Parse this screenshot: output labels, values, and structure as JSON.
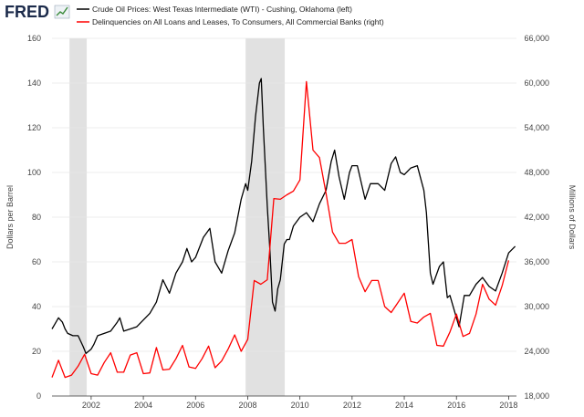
{
  "header": {
    "logo_text": "FRED",
    "logo_icon": "chart-trend-icon"
  },
  "chart_data": {
    "type": "line",
    "title": "",
    "legend_position": "top-left",
    "xlabel": "",
    "xlim": [
      2000.5,
      2018.3
    ],
    "x_ticks": [
      2002,
      2004,
      2006,
      2008,
      2010,
      2012,
      2014,
      2016,
      2018
    ],
    "x_tick_labels": [
      "2002",
      "2004",
      "2006",
      "2008",
      "2010",
      "2012",
      "2014",
      "2016",
      "2018"
    ],
    "left_axis": {
      "label": "Dollars per Barrel",
      "ylim": [
        0,
        160
      ],
      "ticks": [
        0,
        20,
        40,
        60,
        80,
        100,
        120,
        140,
        160
      ],
      "tick_labels": [
        "0",
        "20",
        "40",
        "60",
        "80",
        "100",
        "120",
        "140",
        "160"
      ]
    },
    "right_axis": {
      "label": "Millions of Dollars",
      "ylim": [
        18000,
        66000
      ],
      "ticks": [
        18000,
        24000,
        30000,
        36000,
        42000,
        48000,
        54000,
        60000,
        66000
      ],
      "tick_labels": [
        "18,000",
        "24,000",
        "30,000",
        "36,000",
        "42,000",
        "48,000",
        "54,000",
        "60,000",
        "66,000"
      ]
    },
    "recessions": [
      {
        "start": 2001.17,
        "end": 2001.83
      },
      {
        "start": 2007.92,
        "end": 2009.42
      }
    ],
    "series": [
      {
        "name": "Crude Oil Prices: West Texas Intermediate (WTI) - Cushing, Oklahoma (left)",
        "axis": "left",
        "color": "#000000",
        "x": [
          2000.5,
          2000.6,
          2000.75,
          2000.9,
          2001.0,
          2001.1,
          2001.3,
          2001.5,
          2001.7,
          2001.8,
          2001.9,
          2002.0,
          2002.1,
          2002.25,
          2002.5,
          2002.75,
          2003.0,
          2003.1,
          2003.25,
          2003.5,
          2003.75,
          2004.0,
          2004.25,
          2004.5,
          2004.75,
          2005.0,
          2005.25,
          2005.5,
          2005.67,
          2005.85,
          2006.0,
          2006.3,
          2006.55,
          2006.75,
          2007.0,
          2007.25,
          2007.5,
          2007.75,
          2007.92,
          2008.0,
          2008.15,
          2008.3,
          2008.45,
          2008.52,
          2008.6,
          2008.75,
          2008.85,
          2008.95,
          2009.05,
          2009.15,
          2009.25,
          2009.4,
          2009.5,
          2009.6,
          2009.75,
          2010.0,
          2010.25,
          2010.5,
          2010.75,
          2011.0,
          2011.2,
          2011.33,
          2011.5,
          2011.7,
          2011.9,
          2012.0,
          2012.2,
          2012.5,
          2012.7,
          2013.0,
          2013.25,
          2013.5,
          2013.67,
          2013.85,
          2014.0,
          2014.25,
          2014.5,
          2014.75,
          2014.85,
          2015.0,
          2015.1,
          2015.35,
          2015.5,
          2015.65,
          2015.75,
          2016.0,
          2016.1,
          2016.3,
          2016.5,
          2016.75,
          2017.0,
          2017.25,
          2017.5,
          2017.75,
          2018.0,
          2018.25
        ],
        "values": [
          30,
          32,
          35,
          33,
          30,
          28,
          27,
          27,
          22,
          19,
          20,
          21,
          23,
          27,
          28,
          29,
          33,
          35,
          29,
          30,
          31,
          34,
          37,
          42,
          52,
          46,
          55,
          60,
          66,
          60,
          62,
          71,
          75,
          60,
          55,
          65,
          73,
          88,
          95,
          92,
          105,
          125,
          140,
          142,
          120,
          85,
          65,
          42,
          38,
          48,
          52,
          68,
          70,
          70,
          76,
          80,
          82,
          78,
          86,
          92,
          105,
          110,
          98,
          88,
          100,
          103,
          103,
          88,
          95,
          95,
          92,
          104,
          107,
          100,
          99,
          102,
          103,
          92,
          82,
          55,
          50,
          58,
          60,
          44,
          45,
          35,
          31,
          45,
          45,
          50,
          53,
          49,
          47,
          55,
          64,
          67
        ]
      },
      {
        "name": "Delinquencies on All Loans and Leases, To Consumers, All Commercial Banks (right)",
        "axis": "right",
        "color": "#ff0000",
        "x": [
          2000.5,
          2000.75,
          2001.0,
          2001.25,
          2001.5,
          2001.75,
          2002.0,
          2002.25,
          2002.5,
          2002.75,
          2003.0,
          2003.25,
          2003.5,
          2003.75,
          2004.0,
          2004.25,
          2004.5,
          2004.75,
          2005.0,
          2005.25,
          2005.5,
          2005.75,
          2006.0,
          2006.25,
          2006.5,
          2006.75,
          2007.0,
          2007.25,
          2007.5,
          2007.75,
          2008.0,
          2008.25,
          2008.5,
          2008.75,
          2009.0,
          2009.25,
          2009.5,
          2009.75,
          2010.0,
          2010.25,
          2010.5,
          2010.75,
          2011.0,
          2011.25,
          2011.5,
          2011.75,
          2012.0,
          2012.25,
          2012.5,
          2012.75,
          2013.0,
          2013.25,
          2013.5,
          2013.75,
          2014.0,
          2014.25,
          2014.5,
          2014.75,
          2015.0,
          2015.25,
          2015.5,
          2015.75,
          2016.0,
          2016.25,
          2016.5,
          2016.75,
          2017.0,
          2017.25,
          2017.5,
          2017.75,
          2018.0
        ],
        "values": [
          20500,
          22800,
          20500,
          20800,
          22000,
          23600,
          21000,
          20800,
          22500,
          23800,
          21200,
          21200,
          23500,
          23800,
          21000,
          21100,
          24500,
          21500,
          21600,
          23000,
          24800,
          21900,
          21700,
          23000,
          24700,
          21800,
          22700,
          24300,
          26200,
          24000,
          25600,
          33500,
          33000,
          33600,
          44500,
          44400,
          45000,
          45500,
          47000,
          60200,
          51000,
          50000,
          45200,
          40000,
          38500,
          38500,
          39000,
          34000,
          32000,
          33500,
          33500,
          30000,
          29200,
          30500,
          31800,
          28000,
          27800,
          28600,
          29100,
          24800,
          24700,
          26600,
          29000,
          26000,
          26400,
          29000,
          33000,
          31000,
          30200,
          32800,
          36200
        ]
      }
    ]
  }
}
